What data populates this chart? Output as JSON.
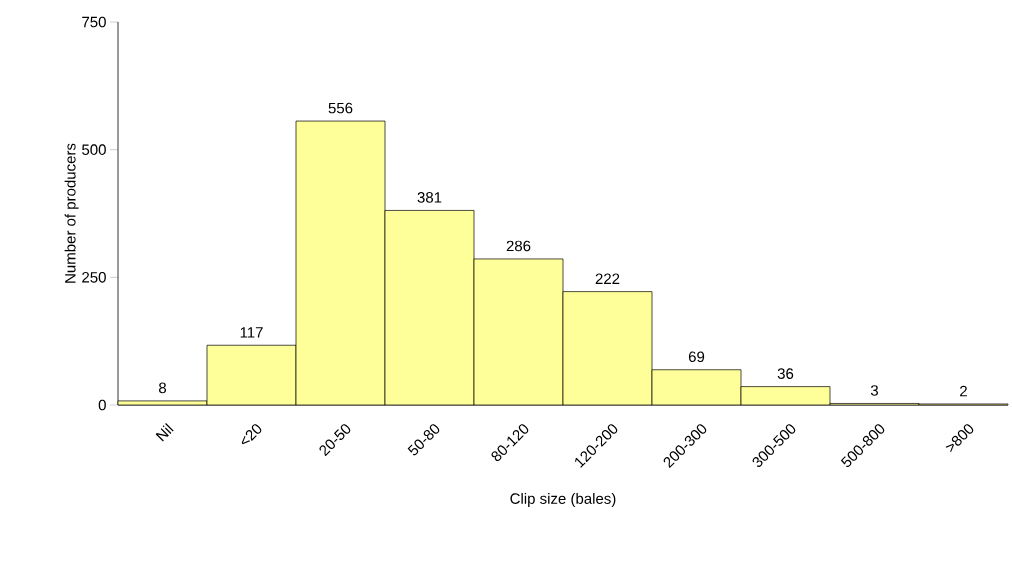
{
  "chart_data": {
    "type": "bar",
    "xlabel": "Clip size (bales)",
    "ylabel": "Number of producers",
    "categories": [
      "Nil",
      "<20",
      "20-50",
      "50-80",
      "80-120",
      "120-200",
      "200-300",
      "300-500",
      "500-800",
      ">800"
    ],
    "values": [
      8,
      117,
      556,
      381,
      286,
      222,
      69,
      36,
      3,
      2
    ],
    "color": "#ffff99",
    "ylim": [
      0,
      750
    ],
    "yticks": [
      0,
      250,
      500,
      750
    ],
    "data_labels": true,
    "grid": false
  }
}
